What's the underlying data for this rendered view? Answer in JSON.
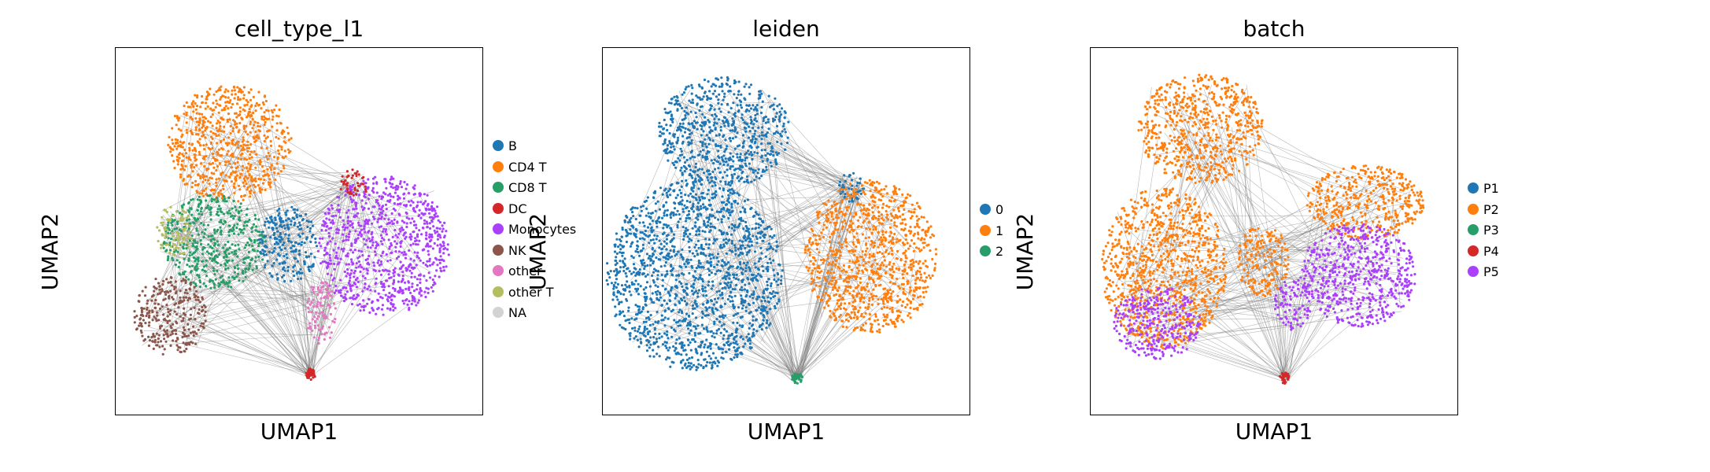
{
  "chart_data": [
    {
      "type": "scatter",
      "title": "cell_type_l1",
      "xlabel": "UMAP1",
      "ylabel": "UMAP2",
      "grid": false,
      "legend_position": "right",
      "legend": [
        {
          "label": "B",
          "color": "#1f77b4"
        },
        {
          "label": "CD4 T",
          "color": "#ff7f0e"
        },
        {
          "label": "CD8 T",
          "color": "#279e68"
        },
        {
          "label": "DC",
          "color": "#d62728"
        },
        {
          "label": "Monocytes",
          "color": "#aa40fc"
        },
        {
          "label": "NK",
          "color": "#8c564b"
        },
        {
          "label": "other",
          "color": "#e377c2"
        },
        {
          "label": "other T",
          "color": "#b5bd61"
        },
        {
          "label": "NA",
          "color": "#d3d3d3"
        }
      ],
      "edge_color": "#808080",
      "clusters": [
        {
          "label": "CD4 T",
          "cx": 0.31,
          "cy": 0.74,
          "rx": 0.17,
          "ry": 0.16
        },
        {
          "label": "CD8 T",
          "cx": 0.27,
          "cy": 0.47,
          "rx": 0.14,
          "ry": 0.13
        },
        {
          "label": "NK",
          "cx": 0.15,
          "cy": 0.27,
          "rx": 0.1,
          "ry": 0.11
        },
        {
          "label": "other T",
          "cx": 0.16,
          "cy": 0.5,
          "rx": 0.05,
          "ry": 0.07
        },
        {
          "label": "B",
          "cx": 0.47,
          "cy": 0.46,
          "rx": 0.08,
          "ry": 0.11
        },
        {
          "label": "Monocytes",
          "cx": 0.73,
          "cy": 0.46,
          "rx": 0.18,
          "ry": 0.19
        },
        {
          "label": "DC",
          "cx": 0.65,
          "cy": 0.63,
          "rx": 0.04,
          "ry": 0.04
        },
        {
          "label": "other",
          "cx": 0.56,
          "cy": 0.28,
          "rx": 0.04,
          "ry": 0.09
        },
        {
          "label": "DC",
          "cx": 0.53,
          "cy": 0.11,
          "rx": 0.015,
          "ry": 0.015
        }
      ]
    },
    {
      "type": "scatter",
      "title": "leiden",
      "xlabel": "UMAP1",
      "ylabel": "UMAP2",
      "grid": false,
      "legend_position": "right",
      "legend": [
        {
          "label": "0",
          "color": "#1f77b4"
        },
        {
          "label": "1",
          "color": "#ff7f0e"
        },
        {
          "label": "2",
          "color": "#279e68"
        }
      ],
      "edge_color": "#808080",
      "clusters": [
        {
          "label": "0",
          "cx": 0.33,
          "cy": 0.77,
          "rx": 0.18,
          "ry": 0.15
        },
        {
          "label": "0",
          "cx": 0.25,
          "cy": 0.38,
          "rx": 0.24,
          "ry": 0.26
        },
        {
          "label": "0",
          "cx": 0.68,
          "cy": 0.62,
          "rx": 0.04,
          "ry": 0.04
        },
        {
          "label": "1",
          "cx": 0.73,
          "cy": 0.43,
          "rx": 0.18,
          "ry": 0.21
        },
        {
          "label": "2",
          "cx": 0.53,
          "cy": 0.1,
          "rx": 0.015,
          "ry": 0.015
        }
      ]
    },
    {
      "type": "scatter",
      "title": "batch",
      "xlabel": "UMAP1",
      "ylabel": "UMAP2",
      "grid": false,
      "legend_position": "right",
      "legend": [
        {
          "label": "P1",
          "color": "#1f77b4"
        },
        {
          "label": "P2",
          "color": "#ff7f0e"
        },
        {
          "label": "P3",
          "color": "#279e68"
        },
        {
          "label": "P4",
          "color": "#d62728"
        },
        {
          "label": "P5",
          "color": "#aa40fc"
        }
      ],
      "edge_color": "#808080",
      "clusters": [
        {
          "label": "P2",
          "cx": 0.3,
          "cy": 0.78,
          "rx": 0.17,
          "ry": 0.15
        },
        {
          "label": "P2",
          "cx": 0.2,
          "cy": 0.4,
          "rx": 0.17,
          "ry": 0.22
        },
        {
          "label": "P2",
          "cx": 0.47,
          "cy": 0.42,
          "rx": 0.07,
          "ry": 0.1
        },
        {
          "label": "P2",
          "cx": 0.75,
          "cy": 0.58,
          "rx": 0.16,
          "ry": 0.1
        },
        {
          "label": "P5",
          "cx": 0.73,
          "cy": 0.38,
          "rx": 0.16,
          "ry": 0.14
        },
        {
          "label": "P5",
          "cx": 0.18,
          "cy": 0.25,
          "rx": 0.12,
          "ry": 0.1
        },
        {
          "label": "P5",
          "cx": 0.55,
          "cy": 0.3,
          "rx": 0.05,
          "ry": 0.07
        },
        {
          "label": "P4",
          "cx": 0.53,
          "cy": 0.1,
          "rx": 0.015,
          "ry": 0.015
        }
      ]
    }
  ]
}
